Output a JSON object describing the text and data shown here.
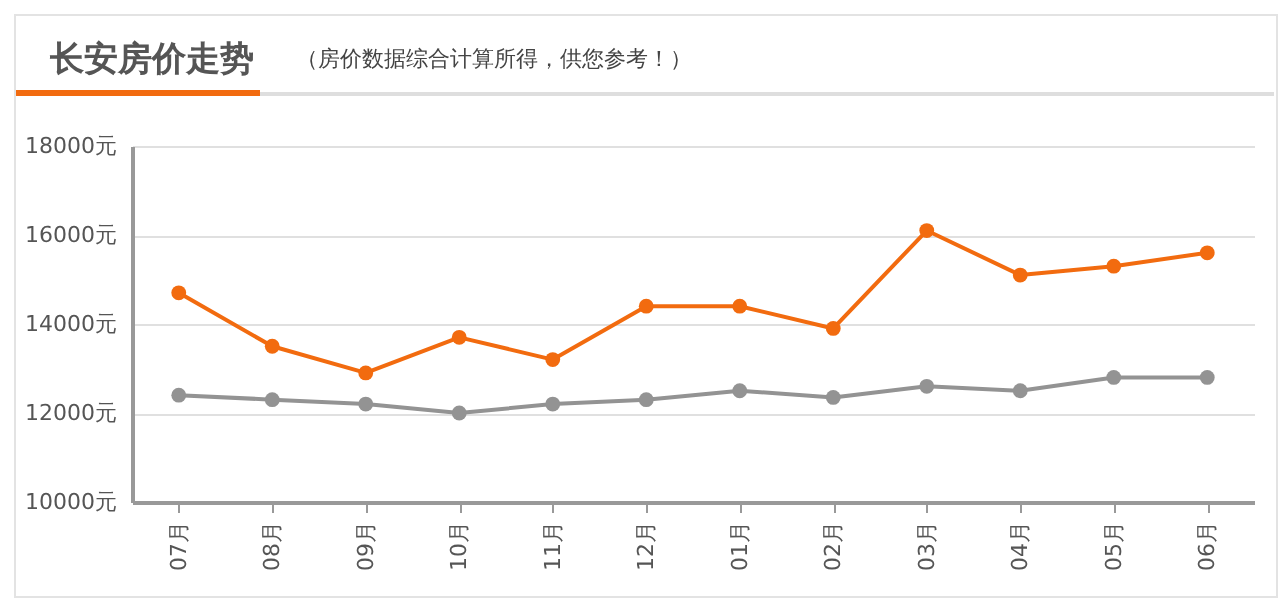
{
  "chart_data": {
    "type": "line",
    "title": "长安房价走势",
    "subtitle": "（房价数据综合计算所得，供您参考！）",
    "categories": [
      "07月",
      "08月",
      "09月",
      "10月",
      "11月",
      "12月",
      "01月",
      "02月",
      "03月",
      "04月",
      "05月",
      "06月"
    ],
    "series": [
      {
        "color": "#f26b0f",
        "values": [
          14700,
          13500,
          12900,
          13700,
          13200,
          14400,
          14400,
          13900,
          16100,
          15100,
          15300,
          15600
        ]
      },
      {
        "color": "#939393",
        "values": [
          12400,
          12300,
          12200,
          12000,
          12200,
          12300,
          12500,
          12350,
          12600,
          12500,
          12800,
          12800
        ]
      }
    ],
    "ylim": [
      10000,
      18000
    ],
    "yticks": [
      {
        "value": 10000,
        "label": "10000元"
      },
      {
        "value": 12000,
        "label": "12000元"
      },
      {
        "value": 14000,
        "label": "14000元"
      },
      {
        "value": 16000,
        "label": "16000元"
      },
      {
        "value": 18000,
        "label": "18000元"
      }
    ],
    "grid": "y",
    "marker": "circle",
    "line_style": "solid"
  }
}
